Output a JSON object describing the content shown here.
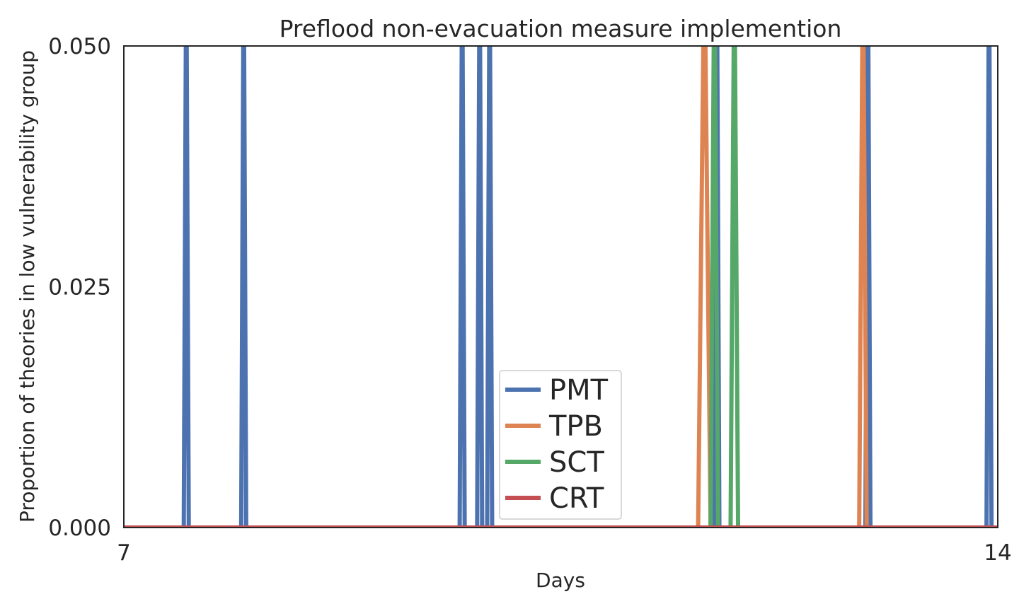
{
  "chart_data": {
    "type": "line",
    "title": "Preflood non-evacuation measure implemention",
    "xlabel": "Days",
    "ylabel": "Proportion of theories in low vulnerability group",
    "xlim": [
      7,
      14
    ],
    "ylim": [
      0,
      0.05
    ],
    "x_ticks": [
      7,
      14
    ],
    "x_tick_labels": [
      "7",
      "14"
    ],
    "y_ticks": [
      0,
      0.025,
      0.05
    ],
    "y_tick_labels": [
      "0.000",
      "0.025",
      "0.050"
    ],
    "grid": false,
    "legend": {
      "location": "lower-center",
      "entries": [
        "PMT",
        "TPB",
        "SCT",
        "CRT"
      ]
    },
    "series": [
      {
        "name": "PMT",
        "color": "#4c72b0",
        "x": [
          7,
          7.48,
          7.5,
          7.52,
          7.94,
          7.96,
          7.98,
          9.69,
          9.71,
          9.73,
          9.83,
          9.85,
          9.87,
          9.91,
          9.93,
          9.95,
          11.73,
          11.75,
          11.77,
          12.94,
          12.96,
          12.98,
          13.91,
          13.93,
          13.95,
          14
        ],
        "y": [
          0,
          0,
          0.06,
          0,
          0,
          0.06,
          0,
          0,
          0.06,
          0,
          0,
          0.06,
          0,
          0,
          0.06,
          0,
          0,
          0.06,
          0,
          0,
          0.06,
          0,
          0,
          0.06,
          0,
          0
        ]
      },
      {
        "name": "TPB",
        "color": "#dd8452",
        "x": [
          7,
          11.6,
          11.65,
          11.7,
          12.89,
          12.92,
          12.95,
          14
        ],
        "y": [
          0,
          0,
          0.06,
          0,
          0,
          0.06,
          0,
          0
        ]
      },
      {
        "name": "SCT",
        "color": "#55a868",
        "x": [
          7,
          11.7,
          11.73,
          11.76,
          11.86,
          11.89,
          11.92,
          14
        ],
        "y": [
          0,
          0,
          0.06,
          0,
          0,
          0.06,
          0,
          0
        ]
      },
      {
        "name": "CRT",
        "color": "#c44e52",
        "x": [
          7,
          14
        ],
        "y": [
          0,
          0
        ]
      }
    ]
  }
}
